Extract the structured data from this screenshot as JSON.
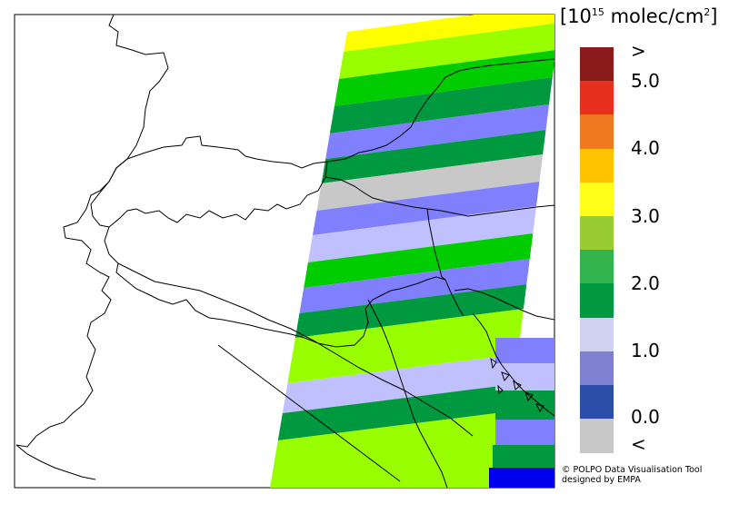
{
  "legend": {
    "unit_prefix": "[10",
    "unit_exponent": "15",
    "unit_suffix": " molec/cm",
    "unit_sq": "2",
    "unit_close": "]",
    "tick_labels": [
      ">",
      "5.0",
      "4.0",
      "3.0",
      "2.0",
      "1.0",
      "0.0",
      "<"
    ],
    "bins": [
      {
        "color": "#8b1a1a"
      },
      {
        "color": "#e8301e"
      },
      {
        "color": "#f07820"
      },
      {
        "color": "#ffc400"
      },
      {
        "color": "#ffff1a"
      },
      {
        "color": "#99cc33"
      },
      {
        "color": "#33b34d"
      },
      {
        "color": "#009940"
      },
      {
        "color": "#d0d0f0"
      },
      {
        "color": "#8080d0"
      },
      {
        "color": "#2c4da8"
      },
      {
        "color": "#c8c8c8"
      }
    ]
  },
  "credit": {
    "line1": "© POLPO Data Visualisation Tool",
    "line2": "designed by EMPA"
  },
  "map": {
    "swath_colors": {
      "yellow": "#ffff00",
      "lime": "#99ff00",
      "lightgreen": "#a5e23c",
      "green": "#00cc00",
      "darkgreen": "#009940",
      "medblue": "#8080ff",
      "lightblue": "#c0c0ff",
      "gray": "#c8c8c8",
      "blue": "#0000ee"
    }
  }
}
